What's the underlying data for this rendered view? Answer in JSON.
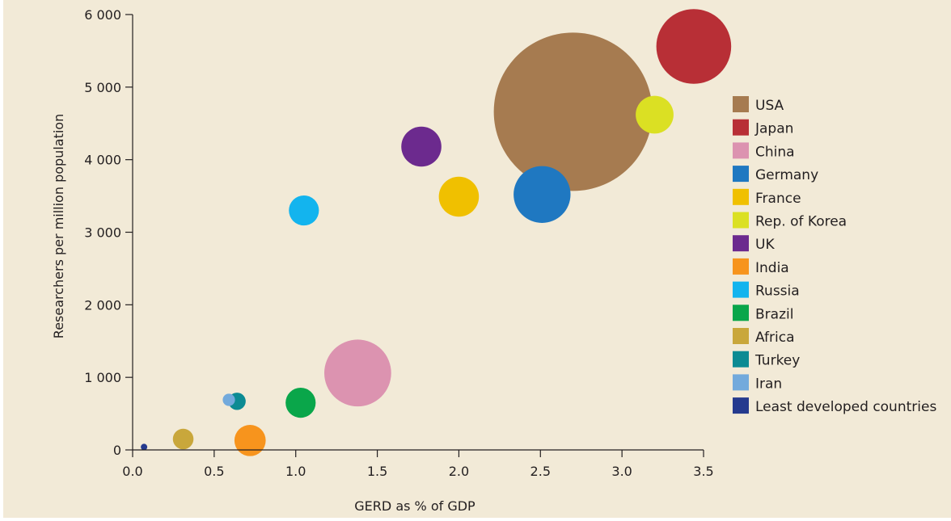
{
  "chart_data": {
    "type": "scatter",
    "title": "",
    "xlabel": "GERD as % of GDP",
    "ylabel": "Researchers per million population",
    "xlim": [
      0,
      3.5
    ],
    "ylim": [
      0,
      6000
    ],
    "x_ticks": [
      {
        "value": 0.0,
        "label": "0.0"
      },
      {
        "value": 0.5,
        "label": "0.5"
      },
      {
        "value": 1.0,
        "label": "1.0"
      },
      {
        "value": 1.5,
        "label": "1.5"
      },
      {
        "value": 2.0,
        "label": "2.0"
      },
      {
        "value": 2.5,
        "label": "2.5"
      },
      {
        "value": 3.0,
        "label": "3.0"
      },
      {
        "value": 3.5,
        "label": "3.5"
      }
    ],
    "y_ticks": [
      {
        "value": 0,
        "label": "0"
      },
      {
        "value": 1000,
        "label": "1 000"
      },
      {
        "value": 2000,
        "label": "2 000"
      },
      {
        "value": 3000,
        "label": "3 000"
      },
      {
        "value": 4000,
        "label": "4 000"
      },
      {
        "value": 5000,
        "label": "5 000"
      },
      {
        "value": 6000,
        "label": "6 000"
      }
    ],
    "grid": false,
    "legend_position": "right",
    "size_encoding": "bubble area (relative, unlabeled)",
    "series": [
      {
        "name": "USA",
        "color": "#a67b50",
        "x": 2.7,
        "y": 4660,
        "size": 1.0
      },
      {
        "name": "Japan",
        "color": "#b82f36",
        "x": 3.44,
        "y": 5560,
        "size": 0.223
      },
      {
        "name": "China",
        "color": "#dc93b0",
        "x": 1.38,
        "y": 1060,
        "size": 0.178
      },
      {
        "name": "Germany",
        "color": "#1f78c1",
        "x": 2.51,
        "y": 3520,
        "size": 0.129
      },
      {
        "name": "France",
        "color": "#f0c000",
        "x": 2.0,
        "y": 3490,
        "size": 0.064
      },
      {
        "name": "Rep. of Korea",
        "color": "#dbe023",
        "x": 3.2,
        "y": 4620,
        "size": 0.057
      },
      {
        "name": "UK",
        "color": "#6c2a8e",
        "x": 1.77,
        "y": 4180,
        "size": 0.064
      },
      {
        "name": "India",
        "color": "#f7941d",
        "x": 0.72,
        "y": 130,
        "size": 0.039
      },
      {
        "name": "Russia",
        "color": "#13b4ee",
        "x": 1.05,
        "y": 3300,
        "size": 0.036
      },
      {
        "name": "Brazil",
        "color": "#0aa64a",
        "x": 1.03,
        "y": 650,
        "size": 0.036
      },
      {
        "name": "Africa",
        "color": "#c9a73b",
        "x": 0.31,
        "y": 150,
        "size": 0.017
      },
      {
        "name": "Turkey",
        "color": "#0c8b93",
        "x": 0.64,
        "y": 670,
        "size": 0.012
      },
      {
        "name": "Iran",
        "color": "#73aadc",
        "x": 0.59,
        "y": 690,
        "size": 0.006
      },
      {
        "name": "Least developed countries",
        "color": "#253a8e",
        "x": 0.07,
        "y": 40,
        "size": 0.001
      }
    ]
  }
}
